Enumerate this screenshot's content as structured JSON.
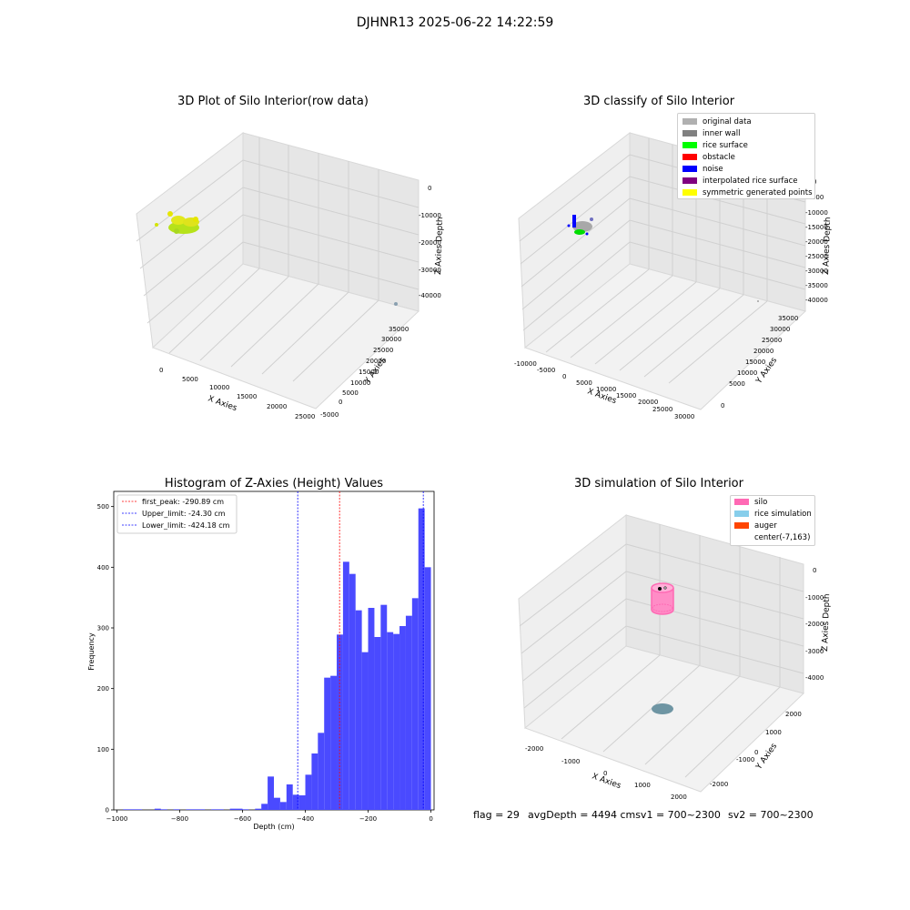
{
  "figure": {
    "suptitle": "DJHNR13 2025-06-22 14:22:59",
    "footer": {
      "flag": "flag = 29",
      "avg": "avgDepth = 4494 cmsv1 = 700~2300",
      "sv2": "sv2 = 700~2300"
    }
  },
  "colors": {
    "hist_bar": "#4a4aff",
    "first_peak": "#ff0000",
    "limit_line": "#0000ff",
    "original_data": "#b0b0b0",
    "inner_wall": "#808080",
    "rice_surface": "#00ff00",
    "obstacle": "#ff0000",
    "noise": "#0000ff",
    "interpolated_rice_surface": "#800080",
    "symmetric_generated_points": "#ffff00",
    "silo": "#ff69b4",
    "rice_simulation": "#87ceeb",
    "auger": "#ff4500"
  },
  "panels": {
    "raw": {
      "title": "3D Plot of Silo Interior(row data)",
      "xlabel": "X Axies",
      "ylabel": "Y Axies",
      "zlabel": "Z Axies Depth",
      "xticks": [
        "0",
        "5000",
        "10000",
        "15000",
        "20000",
        "25000"
      ],
      "yticks": [
        "-5000",
        "0",
        "5000",
        "10000",
        "15000",
        "20000",
        "25000",
        "30000",
        "35000"
      ],
      "zticks": [
        "0",
        "-10000",
        "-20000",
        "-30000",
        "-40000"
      ]
    },
    "classify": {
      "title": "3D classify of Silo Interior",
      "xlabel": "X Axies",
      "ylabel": "Y Axies",
      "zlabel": "Z Axies Depth",
      "xticks": [
        "-10000",
        "-5000",
        "0",
        "5000",
        "10000",
        "15000",
        "20000",
        "25000",
        "30000"
      ],
      "yticks": [
        "0",
        "5000",
        "10000",
        "15000",
        "20000",
        "25000",
        "30000",
        "35000"
      ],
      "zticks": [
        "0",
        "-5000",
        "-10000",
        "-15000",
        "-20000",
        "-25000",
        "-30000",
        "-35000",
        "-40000"
      ],
      "legend": [
        {
          "label": "original data",
          "color": "#b0b0b0"
        },
        {
          "label": "inner wall",
          "color": "#808080"
        },
        {
          "label": "rice surface",
          "color": "#00ff00"
        },
        {
          "label": "obstacle",
          "color": "#ff0000"
        },
        {
          "label": "noise",
          "color": "#0000ff"
        },
        {
          "label": "interpolated rice surface",
          "color": "#800080"
        },
        {
          "label": "symmetric generated points",
          "color": "#ffff00"
        }
      ]
    },
    "simulation": {
      "title": "3D simulation of Silo Interior",
      "xlabel": "X Axies",
      "ylabel": "Y Axies",
      "zlabel": "Z Axies Depth",
      "xticks": [
        "-2000",
        "-1000",
        "0",
        "1000",
        "2000"
      ],
      "yticks": [
        "-2000",
        "-1000",
        "0",
        "1000",
        "2000"
      ],
      "zticks": [
        "0",
        "-1000",
        "-2000",
        "-3000",
        "-4000"
      ],
      "legend": [
        {
          "label": "silo",
          "color": "#ff69b4"
        },
        {
          "label": "rice simulation",
          "color": "#87ceeb"
        },
        {
          "label": "auger",
          "color": "#ff4500"
        },
        {
          "label": "center(-7,163)",
          "color": ""
        }
      ]
    }
  },
  "chart_data": {
    "type": "bar",
    "title": "Histogram of Z-Axies (Height) Values",
    "xlabel": "Depth (cm)",
    "ylabel": "Frequency",
    "xlim": [
      -1010,
      10
    ],
    "ylim": [
      0,
      525
    ],
    "xticks": [
      -1000,
      -800,
      -600,
      -400,
      -200,
      0
    ],
    "yticks": [
      0,
      100,
      200,
      300,
      400,
      500
    ],
    "bin_width": 20,
    "bins": [
      {
        "x0": -980,
        "x1": -920,
        "y": 1
      },
      {
        "x0": -880,
        "x1": -860,
        "y": 2
      },
      {
        "x0": -860,
        "x1": -840,
        "y": 1
      },
      {
        "x0": -820,
        "x1": -800,
        "y": 1
      },
      {
        "x0": -780,
        "x1": -720,
        "y": 1
      },
      {
        "x0": -700,
        "x1": -660,
        "y": 1
      },
      {
        "x0": -640,
        "x1": -600,
        "y": 2
      },
      {
        "x0": -600,
        "x1": -580,
        "y": 1
      },
      {
        "x0": -560,
        "x1": -540,
        "y": 2
      },
      {
        "x0": -540,
        "x1": -520,
        "y": 10
      },
      {
        "x0": -520,
        "x1": -500,
        "y": 55
      },
      {
        "x0": -500,
        "x1": -480,
        "y": 20
      },
      {
        "x0": -480,
        "x1": -460,
        "y": 13
      },
      {
        "x0": -460,
        "x1": -440,
        "y": 42
      },
      {
        "x0": -440,
        "x1": -420,
        "y": 25
      },
      {
        "x0": -420,
        "x1": -400,
        "y": 24
      },
      {
        "x0": -400,
        "x1": -380,
        "y": 58
      },
      {
        "x0": -380,
        "x1": -360,
        "y": 93
      },
      {
        "x0": -360,
        "x1": -340,
        "y": 127
      },
      {
        "x0": -340,
        "x1": -320,
        "y": 218
      },
      {
        "x0": -320,
        "x1": -300,
        "y": 221
      },
      {
        "x0": -300,
        "x1": -280,
        "y": 289
      },
      {
        "x0": -280,
        "x1": -260,
        "y": 409
      },
      {
        "x0": -260,
        "x1": -240,
        "y": 389
      },
      {
        "x0": -240,
        "x1": -220,
        "y": 329
      },
      {
        "x0": -220,
        "x1": -200,
        "y": 260
      },
      {
        "x0": -200,
        "x1": -180,
        "y": 333
      },
      {
        "x0": -180,
        "x1": -160,
        "y": 285
      },
      {
        "x0": -160,
        "x1": -140,
        "y": 338
      },
      {
        "x0": -140,
        "x1": -120,
        "y": 293
      },
      {
        "x0": -120,
        "x1": -100,
        "y": 290
      },
      {
        "x0": -100,
        "x1": -80,
        "y": 303
      },
      {
        "x0": -80,
        "x1": -60,
        "y": 320
      },
      {
        "x0": -60,
        "x1": -40,
        "y": 349
      },
      {
        "x0": -40,
        "x1": -20,
        "y": 497
      },
      {
        "x0": -20,
        "x1": 0,
        "y": 400
      }
    ],
    "vlines": [
      {
        "label": "first_peak: -290.89 cm",
        "x": -290.89,
        "color": "#ff0000"
      },
      {
        "label": "Upper_limit: -24.30 cm",
        "x": -24.3,
        "color": "#0000ff"
      },
      {
        "label": "Lower_limit: -424.18 cm",
        "x": -424.18,
        "color": "#0000ff"
      }
    ],
    "legend": "top-left"
  }
}
